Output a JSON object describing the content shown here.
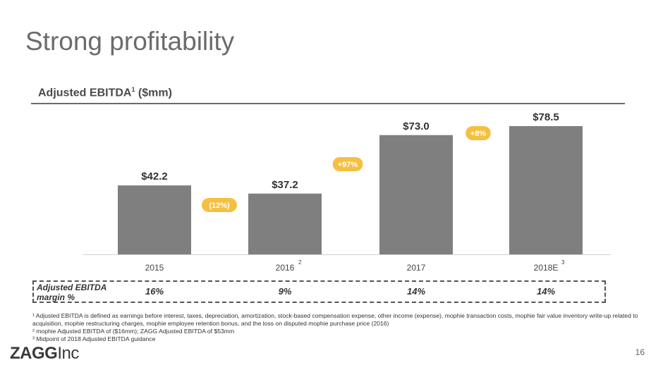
{
  "slide": {
    "title": "Strong profitability",
    "subtitle_main": "Adjusted EBITDA",
    "subtitle_sup": "1",
    "subtitle_unit": " ($mm)",
    "page_number": "16",
    "logo_bold": "ZAGG",
    "logo_light": "Inc"
  },
  "chart_data": {
    "type": "bar",
    "title": "Adjusted EBITDA ($mm)",
    "categories": [
      "2015",
      "2016",
      "2017",
      "2018E"
    ],
    "category_sups": [
      "",
      "2",
      "",
      "3"
    ],
    "values": [
      42.2,
      37.2,
      73.0,
      78.5
    ],
    "value_labels": [
      "$42.2",
      "$37.2",
      "$73.0",
      "$78.5"
    ],
    "ylim": [
      0,
      85
    ],
    "bar_color": "#7f7f7f",
    "growth_badges": [
      {
        "label": "(12%)",
        "between": [
          0,
          1
        ]
      },
      {
        "label": "+97%",
        "between": [
          1,
          2
        ]
      },
      {
        "label": "+8%",
        "between": [
          2,
          3
        ]
      }
    ],
    "badge_color": "#f5c040"
  },
  "margins": {
    "label": "Adjusted EBITDA margin %",
    "label_line1": "Adjusted EBITDA",
    "label_line2": "margin %",
    "values": [
      "16%",
      "9%",
      "14%",
      "14%"
    ]
  },
  "footnotes": [
    "¹ Adjusted EBITDA is defined as earnings before interest, taxes, depreciation, amortization, stock-based compensation expense, other income (expense), mophie transaction costs, mophie fair value inventory write-up related to acquisition, mophie restructuring charges, mophie employee retention bonus, and the loss on disputed mophie purchase price (2016)",
    "² mophie Adjusted EBITDA of ($16mm); ZAGG Adjusted EBITDA of $53mm",
    "³ Midpoint of 2018 Adjusted EBITDA guidance"
  ]
}
